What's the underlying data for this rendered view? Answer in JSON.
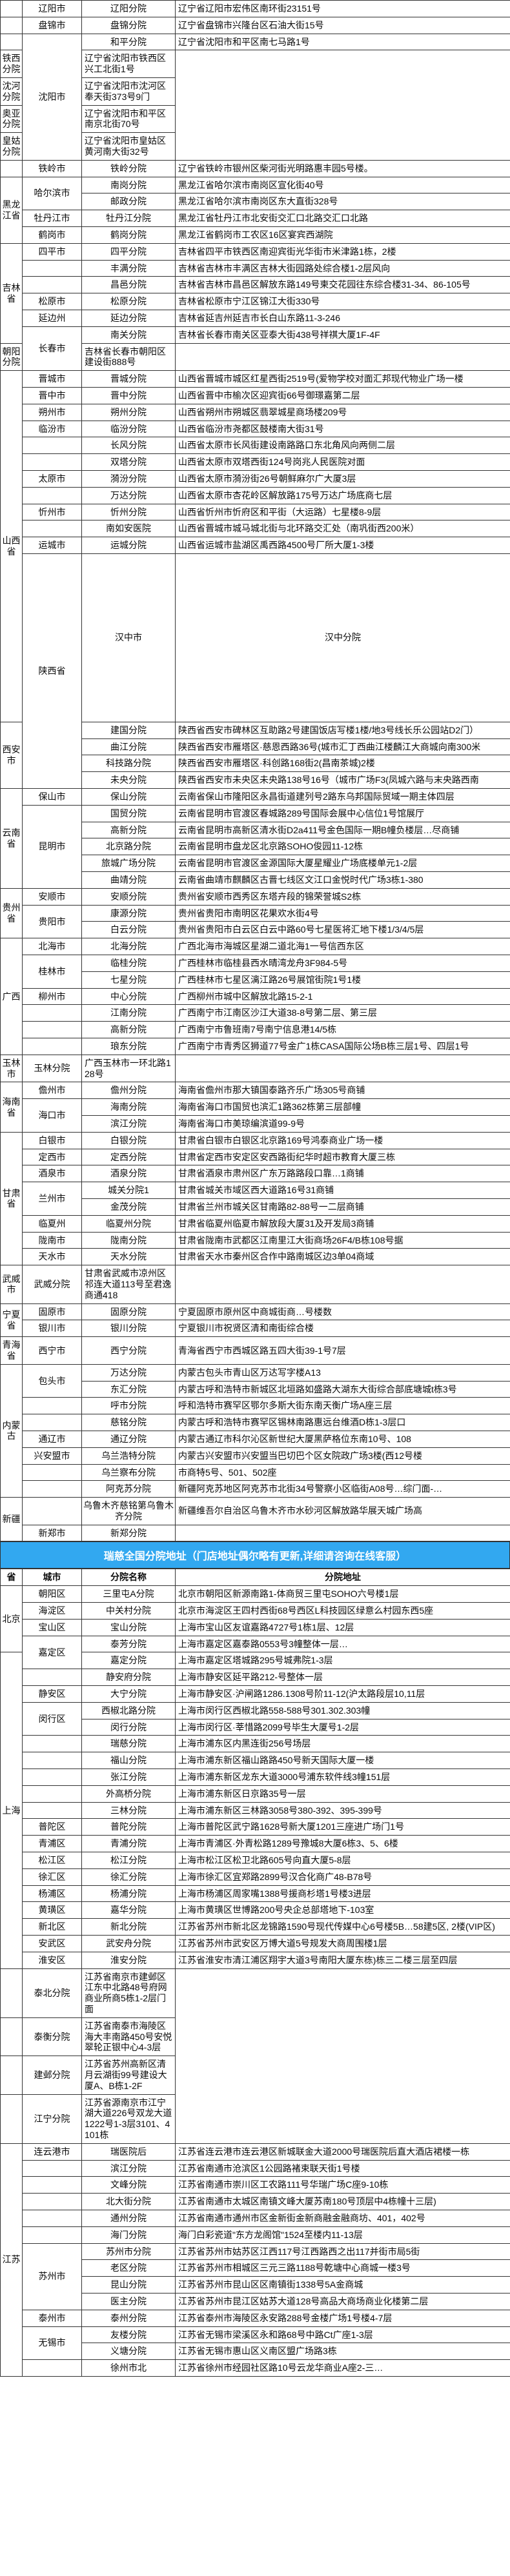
{
  "columns": {
    "province_w": 34,
    "city_w": 92,
    "branch_w": 145,
    "addr_w": 519
  },
  "band1": {
    "column_headers": {
      "province": "省",
      "city": "城市",
      "branch": "分院名称",
      "addr": "分院地址"
    },
    "rows": [
      {
        "province": "",
        "city": "辽阳市",
        "branch": "辽阳分院",
        "addr": "辽宁省辽阳市宏伟区南环街23151号"
      },
      {
        "province": "",
        "city": "盘锦市",
        "branch": "盘锦分院",
        "addr": "辽宁省盘锦市兴隆台区石油大街15号"
      },
      {
        "province": "",
        "city": "沈阳市",
        "city_rowspan": 5,
        "branch": "和平分院",
        "addr": "辽宁省沈阳市和平区南七马路1号"
      },
      {
        "branch": "铁西分院",
        "addr": "辽宁省沈阳市铁西区兴工北街1号"
      },
      {
        "branch": "沈河分院",
        "addr": "辽宁省沈阳市沈河区奉天街373号9门"
      },
      {
        "branch": "奥亚分院",
        "addr": "辽宁省沈阳市和平区南京北街70号"
      },
      {
        "branch": "皇姑分院",
        "addr": "辽宁省沈阳市皇姑区黄河南大街32号"
      },
      {
        "province": "",
        "city": "铁岭市",
        "branch": "铁岭分院",
        "addr": "辽宁省铁岭市银州区柴河街光明路惠丰园5号楼。"
      },
      {
        "province": "黑龙江省",
        "province_rowspan": 4,
        "city": "哈尔滨市",
        "city_rowspan": 2,
        "branch": "南岗分院",
        "addr": "黑龙江省哈尔滨市南岗区宣化街40号"
      },
      {
        "branch": "邮政分院",
        "addr": "黑龙江省哈尔滨市南岗区东大直街328号"
      },
      {
        "city": "牡丹江市",
        "branch": "牡丹江分院",
        "addr": "黑龙江省牡丹江市北安街交汇口北路交汇口北路"
      },
      {
        "city": "鹤岗市",
        "branch": "鹤岗分院",
        "addr": "黑龙江省鹤岗市工农区16区宴宾西湖院"
      },
      {
        "province": "吉林省",
        "province_rowspan": 6,
        "city": "四平市",
        "branch": "四平分院",
        "addr": "吉林省四平市铁西区南迎宾街光华街市米津路1栋，2楼"
      },
      {
        "city": "",
        "branch": "丰满分院",
        "addr": "吉林省吉林市丰满区吉林大街园路处综合楼1-2层风向"
      },
      {
        "city": "",
        "branch": "昌邑分院",
        "addr": "吉林省吉林市昌邑区解放东路149号柬交花园往东综合楼31-34、86-105号"
      },
      {
        "city": "松原市",
        "branch": "松原分院",
        "addr": "吉林省松原市宁江区锦江大街330号"
      },
      {
        "city": "延边州",
        "branch": "延边分院",
        "addr": "吉林省延吉州延吉市长白山东路11-3-246"
      },
      {
        "city": "长春市",
        "city_rowspan": 2,
        "branch": "南关分院",
        "addr": "吉林省长春市南关区亚泰大街438号祥祺大厦1F-4F"
      },
      {
        "branch": "朝阳分院",
        "addr": "吉林省长春市朝阳区建设街888号"
      },
      {
        "province": "山西省",
        "province_rowspan": 12,
        "city": "晋城市",
        "branch": "晋城分院",
        "addr": "山西省晋城市城区红星西街2519号(爱物学校对面汇邦现代物业广场一楼"
      },
      {
        "city": "晋中市",
        "branch": "晋中分院",
        "addr": "山西省晋中市榆次区迎宾街66号御璟嘉第二层"
      },
      {
        "city": "朔州市",
        "branch": "朔州分院",
        "addr": "山西省朔州市朔城区翡翠城星商场楼209号"
      },
      {
        "city": "临汾市",
        "branch": "临汾分院",
        "addr": "山西省临汾市尧都区鼓楼南大街31号"
      },
      {
        "city": "",
        "branch": "长风分院",
        "addr": "山西省太原市长风街建设南路路口东北角风向两侧二层"
      },
      {
        "city": "",
        "branch": "双塔分院",
        "addr": "山西省太原市双塔西街124号岗兆人民医院对面"
      },
      {
        "city": "太原市",
        "branch": "漪汾分院",
        "addr": "山西省太原市漪汾街26号朝鲜麻尔广大厦3层"
      },
      {
        "city": "",
        "branch": "万达分院",
        "addr": "山西省太原市杏花岭区解放路175号万达广场底商七层"
      },
      {
        "city": "忻州市",
        "branch": "忻州分院",
        "addr": "山西省忻州市忻府区和平街（大运路）七星楼8-9层"
      },
      {
        "city": "",
        "branch": "南如安医院",
        "addr": "山西省晋城市城马城北街与北环路交汇处（南巩街西200米）"
      },
      {
        "city": "运城市",
        "branch": "运城分院",
        "addr": "山西省运城市盐湖区禹西路4500号厂所大厦1-3楼"
      },
      {
        "province": "陕西省",
        "province_rowspan": 5,
        "city": "汉中市",
        "branch": "汉中分院",
        "addr": "陕西省汉中市汉江路滨江佳苑6栋"
      },
      {
        "city": "西安市",
        "city_rowspan": 4,
        "branch": "建国分院",
        "addr": "陕西省西安市碑林区互助路2号建国饭店写楼1楼/地3号线长乐公园站D2门）"
      },
      {
        "branch": "曲江分院",
        "addr": "陕西省西安市雁塔区·慈恩西路36号(城市汇丁西曲江楼麟江大商城向南300米"
      },
      {
        "branch": "科技路分院",
        "addr": "陕西省西安市雁塔区·科创路168街2(昌南茶城)2楼"
      },
      {
        "branch": "未央分院",
        "addr": "陕西省西安市未央区未央路138号16号（城市广场F3(凤城六路与末央路西南"
      },
      {
        "province": "云南省",
        "province_rowspan": 6,
        "city": "保山市",
        "branch": "保山分院",
        "addr": "云南省保山市隆阳区永昌街道建列号2路东乌邦国际贸域一期主体四层"
      },
      {
        "city": "昆明市",
        "city_rowspan": 5,
        "branch": "国贸分院",
        "addr": "云南省昆明市官渡区春城路289号国际会展中心信位1号馆展厅"
      },
      {
        "branch": "高新分院",
        "addr": "云南省昆明市高新区清水街D2a411号金色国际一期B幢负楼层…尽商铺"
      },
      {
        "branch": "北京路分院",
        "addr": "云南省昆明市盘龙区北京路SOHO俊园11-12栋"
      },
      {
        "branch": "旅城广场分院",
        "addr": "云南省昆明市官渡区金源国际大厦星耀业广场底楼单元1-2层"
      },
      {
        "branch": "曲靖分院",
        "addr": "云南省曲靖市麒麟区古晋七线区文江口金悦时代广场3栋1-380"
      },
      {
        "province": "贵州省",
        "province_rowspan": 3,
        "city": "安顺市",
        "branch": "安顺分院",
        "addr": "贵州省安顺市西秀区东塔卉段的锦荣誉城S2栋"
      },
      {
        "city": "贵阳市",
        "city_rowspan": 2,
        "branch": "康源分院",
        "addr": "贵州省贵阳市南明区花果欢水街4号"
      },
      {
        "branch": "白云分院",
        "addr": "贵州省贵阳市白云区白云中路60号七星医将汇地下楼1/3/4/5层"
      },
      {
        "province": "广西",
        "province_rowspan": 7,
        "city": "北海市",
        "branch": "北海分院",
        "addr": "广西北海市海城区星湖二道北海1一号信西东区"
      },
      {
        "city": "桂林市",
        "city_rowspan": 2,
        "branch": "临桂分院",
        "addr": "广西桂林市临桂县西水晴湾龙舟3F984-5号"
      },
      {
        "branch": "七星分院",
        "addr": "广西桂林市七星区漓江路26号展馆街院1号1楼"
      },
      {
        "city": "柳州市",
        "branch": "中心分院",
        "addr": "广西柳州市城中区解放北路15-2-1"
      },
      {
        "city": "",
        "branch": "江南分院",
        "addr": "广西南宁市江南区沙江大道38-8号第二层、第三层"
      },
      {
        "city": "",
        "branch": "高新分院",
        "addr": "广西南宁市鲁班南7号南宁信息港14/5栋"
      },
      {
        "city": "",
        "branch": "琅东分院",
        "addr": "广西南宁市青秀区狮道77号金广1栋CASA国际公场B栋三层1号、四层1号"
      },
      {
        "city": "玉林市",
        "branch": "玉林分院",
        "addr": "广西玉林市一环北路128号"
      },
      {
        "province": "海南省",
        "province_rowspan": 3,
        "city": "儋州市",
        "branch": "儋州分院",
        "addr": "海南省儋州市那大镇国泰路齐乐广场305号商铺"
      },
      {
        "city": "海口市",
        "city_rowspan": 2,
        "branch": "海南分院",
        "addr": "海南省海口市国贸也滨汇1路362栋第三层部幢"
      },
      {
        "branch": "滨江分院",
        "addr": "海南省海口市美琼编滨道99-9号"
      },
      {
        "province": "甘肃省",
        "province_rowspan": 8,
        "city": "白银市",
        "branch": "白银分院",
        "addr": "甘肃省白银市白银区北京路169号鸿泰商业广场一楼"
      },
      {
        "city": "定西市",
        "branch": "定西分院",
        "addr": "甘肃省定西市安定区安西路街纪华时超市教育大厦三栋"
      },
      {
        "city": "酒泉市",
        "branch": "酒泉分院",
        "addr": "甘肃省酒泉市肃州区广东万路路段口靠…1商铺"
      },
      {
        "city": "兰州市",
        "city_rowspan": 2,
        "branch": "城关分院1",
        "addr": "甘肃省城关市域区西大道路16号31商铺"
      },
      {
        "branch": "金茂分院",
        "addr": "甘肃省兰州市城关区甘南路82-88号一二层商铺"
      },
      {
        "city": "临夏州",
        "branch": "临夏州分院",
        "addr": "甘肃省临夏州临夏市解放段大厦31及开发局3商铺"
      },
      {
        "city": "陇南市",
        "branch": "陇南分院",
        "addr": "甘肃省陇南市武都区江南里江大街商场26F4/B栋108号据"
      },
      {
        "city": "天水市",
        "branch": "天水分院",
        "addr": "甘肃省天水市秦州区合作中路南城区边3单04商域"
      },
      {
        "city": "武威市",
        "branch": "武威分院",
        "addr": "甘肃省武威市凉州区祁连大道113号至君逸商通418"
      },
      {
        "province": "宁夏省",
        "province_rowspan": 2,
        "city": "固原市",
        "branch": "固原分院",
        "addr": "宁夏固原市原州区中商城街商…号楼数"
      },
      {
        "city": "银川市",
        "branch": "银川分院",
        "addr": "宁夏银川市祝贤区清和南街综合楼"
      },
      {
        "province": "青海省",
        "city": "西宁市",
        "branch": "西宁分院",
        "addr": "青海省西宁市西城区路五四大街39-1号7层"
      },
      {
        "province": "内蒙古",
        "province_rowspan": 8,
        "city": "包头市",
        "city_rowspan": 2,
        "branch": "万达分院",
        "addr": "内蒙古包头市青山区万达写字楼A13"
      },
      {
        "branch": "东汇分院",
        "addr": "内蒙古呼和浩特市新城区北垣路如盛路大湖东大街综合部底塘城t栋3号"
      },
      {
        "city": "",
        "branch": "呼市分院",
        "addr": "呼和浩特市赛罕区鄂尔多斯大街东南天衡广场A座三层"
      },
      {
        "city": "",
        "branch": "慈铭分院",
        "addr": "内蒙古呼和浩特市赛罕区锡林南路惠远台维酒D栋1-3层口"
      },
      {
        "city": "通辽市",
        "branch": "通辽分院",
        "addr": "内蒙古通辽市科尔沁区新世纪大厦黑萨格位东南10号、108"
      },
      {
        "city": "兴安盟市",
        "branch": "乌兰浩特分院",
        "addr": "内蒙古兴安盟市兴安盟当巴切巴个区女院政广场3楼(西12号楼"
      },
      {
        "city": "",
        "branch": "乌兰察布分院",
        "addr": "市商特5号、501、502座"
      },
      {
        "city": "",
        "branch": "阿克苏分院",
        "addr": "新疆阿克苏地区阿克苏市北街34号警察小区临街A08号…综门面-…"
      },
      {
        "province": "新疆",
        "province_rowspan": 2,
        "city": "",
        "branch": "乌鲁木齐慈铭第乌鲁木齐分院",
        "addr": "新疆维吾尔自治区乌鲁木齐市水砂河区解放路华展天城广场高"
      },
      {
        "city": "新郑市",
        "branch": "新郑分院",
        "addr": ""
      }
    ]
  },
  "band2_title": "瑞慈全国分院地址（门店地址偶尔略有更新,详细请咨询在线客服）",
  "band2": {
    "column_headers": {
      "province": "省",
      "city": "城市",
      "branch": "分院名称",
      "addr": "分院地址"
    },
    "rows": [
      {
        "province": "北京",
        "province_rowspan": 4,
        "city": "朝阳区",
        "branch": "三里屯A分院",
        "addr": "北京市朝阳区新源南路1-体商贸三里屯SOHO六号楼1层"
      },
      {
        "city": "海淀区",
        "branch": "中关村分院",
        "addr": "北京市海淀区王四村西街68号西区L科技园区绿意么村园东西5座"
      },
      {
        "city": "宝山区",
        "branch": "宝山分院",
        "addr": "上海市宝山区友谊嘉路4727号1栋1层、12层"
      },
      {
        "city": "嘉定区",
        "city_rowspan": 2,
        "branch": "泰芳分院",
        "addr": "上海市嘉定区嘉泰路0553号3幢整体一层…"
      },
      {
        "province": "上海",
        "province_rowspan": 19,
        "branch": "嘉定分院",
        "addr": "上海市嘉定区塔城路295号城弗院1-3层"
      },
      {
        "city": "",
        "branch": "静安府分院",
        "addr": "上海市静安区延平路212-号整体一层"
      },
      {
        "city": "静安区",
        "branch": "大宁分院",
        "addr": "上海市静安区·沪闸路1286.1308号阶11-12(沪太路段层10,11层"
      },
      {
        "city": "闵行区",
        "city_rowspan": 2,
        "branch": "西椒北路分院",
        "addr": "上海市闵行区西椒北路558-588号301.302.303幢"
      },
      {
        "branch": "闵行分院",
        "addr": "上海市闵行区·莘惜路2099号毕生大厦号1-2层"
      },
      {
        "city": "",
        "branch": "瑞慈分院",
        "addr": "上海市浦东区内黑连街256号场层"
      },
      {
        "city": "",
        "branch": "福山分院",
        "addr": "上海市浦东新区福山路路450号新天国际大厦一楼"
      },
      {
        "city": "",
        "branch": "张江分院",
        "addr": "上海市浦东新区龙东大道3000号浦东软件线3幢151层"
      },
      {
        "city": "",
        "branch": "外高桥分院",
        "addr": "上海市浦东新区日京路35号一层"
      },
      {
        "city": "",
        "branch": "三林分院",
        "addr": "上海市浦东新区三林路3058号380-392、395-399号"
      },
      {
        "city": "普陀区",
        "branch": "普陀分院",
        "addr": "上海市普陀区武宁路1628号新大厦1201三座进广场门1号"
      },
      {
        "city": "青浦区",
        "branch": "青浦分院",
        "addr": "上海市青浦区·外青松路1289号豫城8大厦6栋3、5、6楼"
      },
      {
        "city": "松江区",
        "branch": "松江分院",
        "addr": "上海市松江区松卫北路605号向直大厦5-8层"
      },
      {
        "city": "徐汇区",
        "branch": "徐汇分院",
        "addr": "上海市徐汇区宜郑路2899号汉合化商广48-B78号"
      },
      {
        "city": "杨浦区",
        "branch": "杨浦分院",
        "addr": "上海市杨浦区周家嘴1388号援商杉塔1号楼3进层"
      },
      {
        "city": "黄璜区",
        "branch": "嘉华分院",
        "addr": "上海市黄璜区世博路200号央企总部塔地下-103室"
      },
      {
        "city": "新北区",
        "branch": "新北分院",
        "addr": "江苏省苏州市新北区龙锦路1590号现代传媒中心6号楼5B…58建5区, 2楼(VIP区)"
      },
      {
        "city": "安武区",
        "branch": "武安舟分院",
        "addr": "江苏省苏州市武安区万博大道5号规发大商周围楼1层"
      },
      {
        "city": "淮安区",
        "branch": "淮安分院",
        "addr": "江苏省淮安市清江浦区翔宇大道3号南阳大厦东栋)栋三二楼三层至四层"
      },
      {
        "city": "",
        "branch": "泰北分院",
        "addr": "江苏省南京市建邺区江东中北路48号府网商业所商5栋1-2层门面"
      },
      {
        "city": "",
        "branch": "泰衡分院",
        "addr": "江苏省南泰市海陵区海大丰南路450号安悦翠轮正银中心4-3层"
      },
      {
        "city": "",
        "branch": "建邺分院",
        "addr": "江苏省苏州高新区清月云湖街99号建设大厦A、B栋1-2F"
      },
      {
        "city": "",
        "branch": "江宁分院",
        "addr": "江苏省源南京市江宁湖大道226号双龙大道1222号1-3层3101、4101栋"
      },
      {
        "province": "江苏",
        "province_rowspan": 14,
        "city": "连云港市",
        "branch": "瑞医院后",
        "addr": "江苏省连云港市连云港区新城联金大道2000号瑞医院后直大酒店裙楼一栋"
      },
      {
        "city": "",
        "branch": "滨江分院",
        "addr": "江苏省南通市沧滨区1公园路褚束联天街1号楼"
      },
      {
        "city": "",
        "branch": "文峰分院",
        "addr": "江苏省南通市崇川区工农路111号华瑞广场C座9-10栋"
      },
      {
        "city": "",
        "branch": "北大街分院",
        "addr": "江苏省南通市太城区南镇文峰大厦苏南180号顶层中4栋幢十三层)"
      },
      {
        "city": "",
        "branch": "通州分院",
        "addr": "江苏省南通市通州市区金新街金新商融金融商坊、401，402号"
      },
      {
        "city": "",
        "branch": "海门分院",
        "addr": "海门白彩瓷道\"东方龙阁馆\"1524至楼内11-13层"
      },
      {
        "city": "苏州市",
        "city_rowspan": 4,
        "branch": "苏州市分院",
        "addr": "江苏省苏州市姑苏区江西117号江西路西之出117并街市局5街"
      },
      {
        "branch": "老区分院",
        "addr": "江苏省苏州市相城区三元三路1188号乾塘中心商城一楼3号"
      },
      {
        "branch": "昆山分院",
        "addr": "江苏省苏州市昆山区区南镇街1338号5A金商城"
      },
      {
        "branch": "医主分院",
        "addr": "江苏省苏州市昆江区姑苏大道128号高品大商场商业化楼第二层"
      },
      {
        "city": "泰州市",
        "branch": "泰州分院",
        "addr": "江苏省泰州市海陵区永安路288号金楼广场1号楼4-7层"
      },
      {
        "city": "无锡市",
        "city_rowspan": 2,
        "branch": "友楼分院",
        "addr": "江苏省无锡市梁溪区永和路68号中路Ct广座1-3层"
      },
      {
        "branch": "义塘分院",
        "addr": "江苏省无锡市惠山区义南区盟广场路3栋"
      },
      {
        "city": "",
        "branch": "徐州市北",
        "addr": "江苏省徐州市经园社区路10号云龙华商业A座2-三…"
      }
    ]
  }
}
